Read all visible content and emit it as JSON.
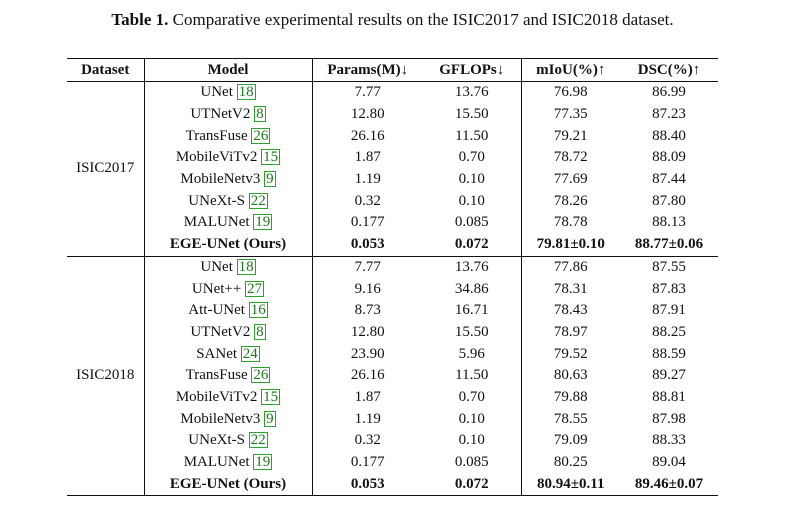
{
  "caption": {
    "label": "Table 1.",
    "text": "Comparative experimental results on the ISIC2017 and ISIC2018 dataset."
  },
  "headers": [
    "Dataset",
    "Model",
    "Params(M)↓",
    "GFLOPs↓",
    "mIoU(%)↑",
    "DSC(%)↑"
  ],
  "groups": [
    {
      "dataset": "ISIC2017",
      "rows": [
        {
          "model": "UNet",
          "ref": "18",
          "params": "7.77",
          "gflops": "13.76",
          "miou": "76.98",
          "dsc": "86.99"
        },
        {
          "model": "UTNetV2",
          "ref": "8",
          "params": "12.80",
          "gflops": "15.50",
          "miou": "77.35",
          "dsc": "87.23"
        },
        {
          "model": "TransFuse",
          "ref": "26",
          "params": "26.16",
          "gflops": "11.50",
          "miou": "79.21",
          "dsc": "88.40"
        },
        {
          "model": "MobileViTv2",
          "ref": "15",
          "params": "1.87",
          "gflops": "0.70",
          "miou": "78.72",
          "dsc": "88.09"
        },
        {
          "model": "MobileNetv3",
          "ref": "9",
          "params": "1.19",
          "gflops": "0.10",
          "miou": "77.69",
          "dsc": "87.44"
        },
        {
          "model": "UNeXt-S",
          "ref": "22",
          "params": "0.32",
          "gflops": "0.10",
          "miou": "78.26",
          "dsc": "87.80"
        },
        {
          "model": "MALUNet",
          "ref": "19",
          "params": "0.177",
          "gflops": "0.085",
          "miou": "78.78",
          "dsc": "88.13"
        },
        {
          "model": "EGE-UNet (Ours)",
          "ref": "",
          "params": "0.053",
          "gflops": "0.072",
          "miou": "79.81±0.10",
          "dsc": "88.77±0.06",
          "ours": true
        }
      ]
    },
    {
      "dataset": "ISIC2018",
      "rows": [
        {
          "model": "UNet",
          "ref": "18",
          "params": "7.77",
          "gflops": "13.76",
          "miou": "77.86",
          "dsc": "87.55"
        },
        {
          "model": "UNet++",
          "ref": "27",
          "params": "9.16",
          "gflops": "34.86",
          "miou": "78.31",
          "dsc": "87.83"
        },
        {
          "model": "Att-UNet",
          "ref": "16",
          "params": "8.73",
          "gflops": "16.71",
          "miou": "78.43",
          "dsc": "87.91"
        },
        {
          "model": "UTNetV2",
          "ref": "8",
          "params": "12.80",
          "gflops": "15.50",
          "miou": "78.97",
          "dsc": "88.25"
        },
        {
          "model": "SANet",
          "ref": "24",
          "params": "23.90",
          "gflops": "5.96",
          "miou": "79.52",
          "dsc": "88.59"
        },
        {
          "model": "TransFuse",
          "ref": "26",
          "params": "26.16",
          "gflops": "11.50",
          "miou": "80.63",
          "dsc": "89.27"
        },
        {
          "model": "MobileViTv2",
          "ref": "15",
          "params": "1.87",
          "gflops": "0.70",
          "miou": "79.88",
          "dsc": "88.81"
        },
        {
          "model": "MobileNetv3",
          "ref": "9",
          "params": "1.19",
          "gflops": "0.10",
          "miou": "78.55",
          "dsc": "87.98"
        },
        {
          "model": "UNeXt-S",
          "ref": "22",
          "params": "0.32",
          "gflops": "0.10",
          "miou": "79.09",
          "dsc": "88.33"
        },
        {
          "model": "MALUNet",
          "ref": "19",
          "params": "0.177",
          "gflops": "0.085",
          "miou": "80.25",
          "dsc": "89.04"
        },
        {
          "model": "EGE-UNet (Ours)",
          "ref": "",
          "params": "0.053",
          "gflops": "0.072",
          "miou": "80.94±0.11",
          "dsc": "89.46±0.07",
          "ours": true
        }
      ]
    }
  ],
  "colors": {
    "ref_link": "#1a7a1a",
    "ref_box": "#2ea02e"
  }
}
